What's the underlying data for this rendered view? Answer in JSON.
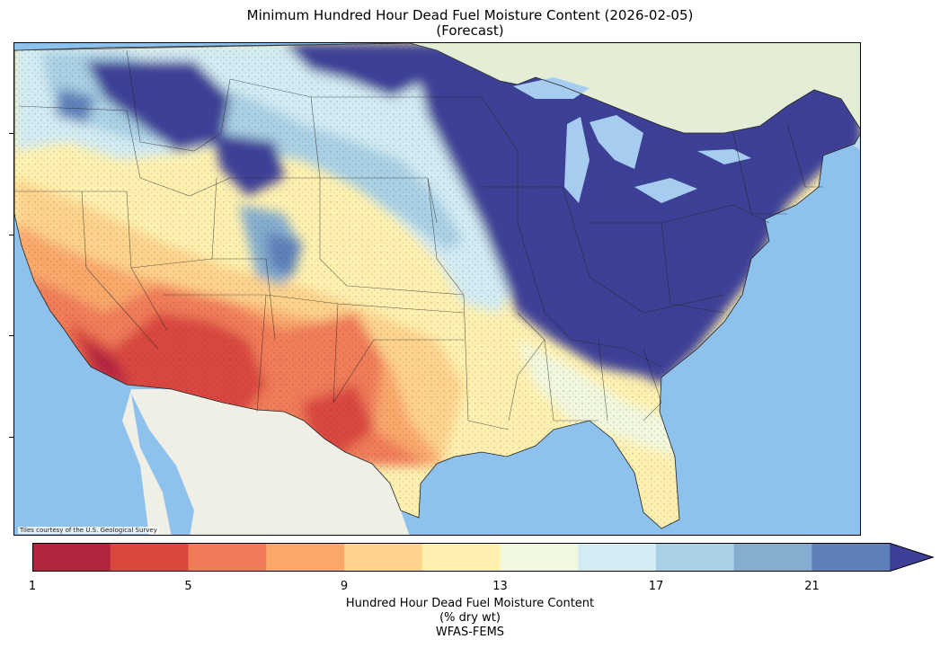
{
  "title_line1": "Minimum Hundred Hour Dead Fuel Moisture Content (2026-02-05)",
  "title_line2": "(Forecast)",
  "attribution": "Tiles courtesy of the U.S. Geological Survey",
  "colorbar": {
    "ticks": [
      "1",
      "5",
      "9",
      "13",
      "17",
      "21"
    ],
    "label_line1": "Hundred Hour Dead Fuel Moisture Content",
    "label_line2": "(% dry wt)",
    "label_line3": "WFAS-FEMS",
    "extend": "max",
    "bins": [
      {
        "from": 1,
        "to": 3,
        "color": "#b2243f"
      },
      {
        "from": 3,
        "to": 5,
        "color": "#d9473f"
      },
      {
        "from": 5,
        "to": 7,
        "color": "#f07b58"
      },
      {
        "from": 7,
        "to": 9,
        "color": "#f9a86a"
      },
      {
        "from": 9,
        "to": 11,
        "color": "#fdd38c"
      },
      {
        "from": 11,
        "to": 13,
        "color": "#fef1b0"
      },
      {
        "from": 13,
        "to": 15,
        "color": "#f1f8e0"
      },
      {
        "from": 15,
        "to": 17,
        "color": "#d3ebf3"
      },
      {
        "from": 17,
        "to": 19,
        "color": "#a9d0e4"
      },
      {
        "from": 19,
        "to": 21,
        "color": "#84adcf"
      },
      {
        "from": 21,
        "to": 23,
        "color": "#5d80b9"
      },
      {
        "from": 23,
        "to": null,
        "color": "#3e3f97"
      }
    ]
  },
  "map_colors": {
    "ocean": "#8ec1ec",
    "land": "#efefe6",
    "canada": "#e4edd6",
    "lakes": "#a6cdf0"
  }
}
